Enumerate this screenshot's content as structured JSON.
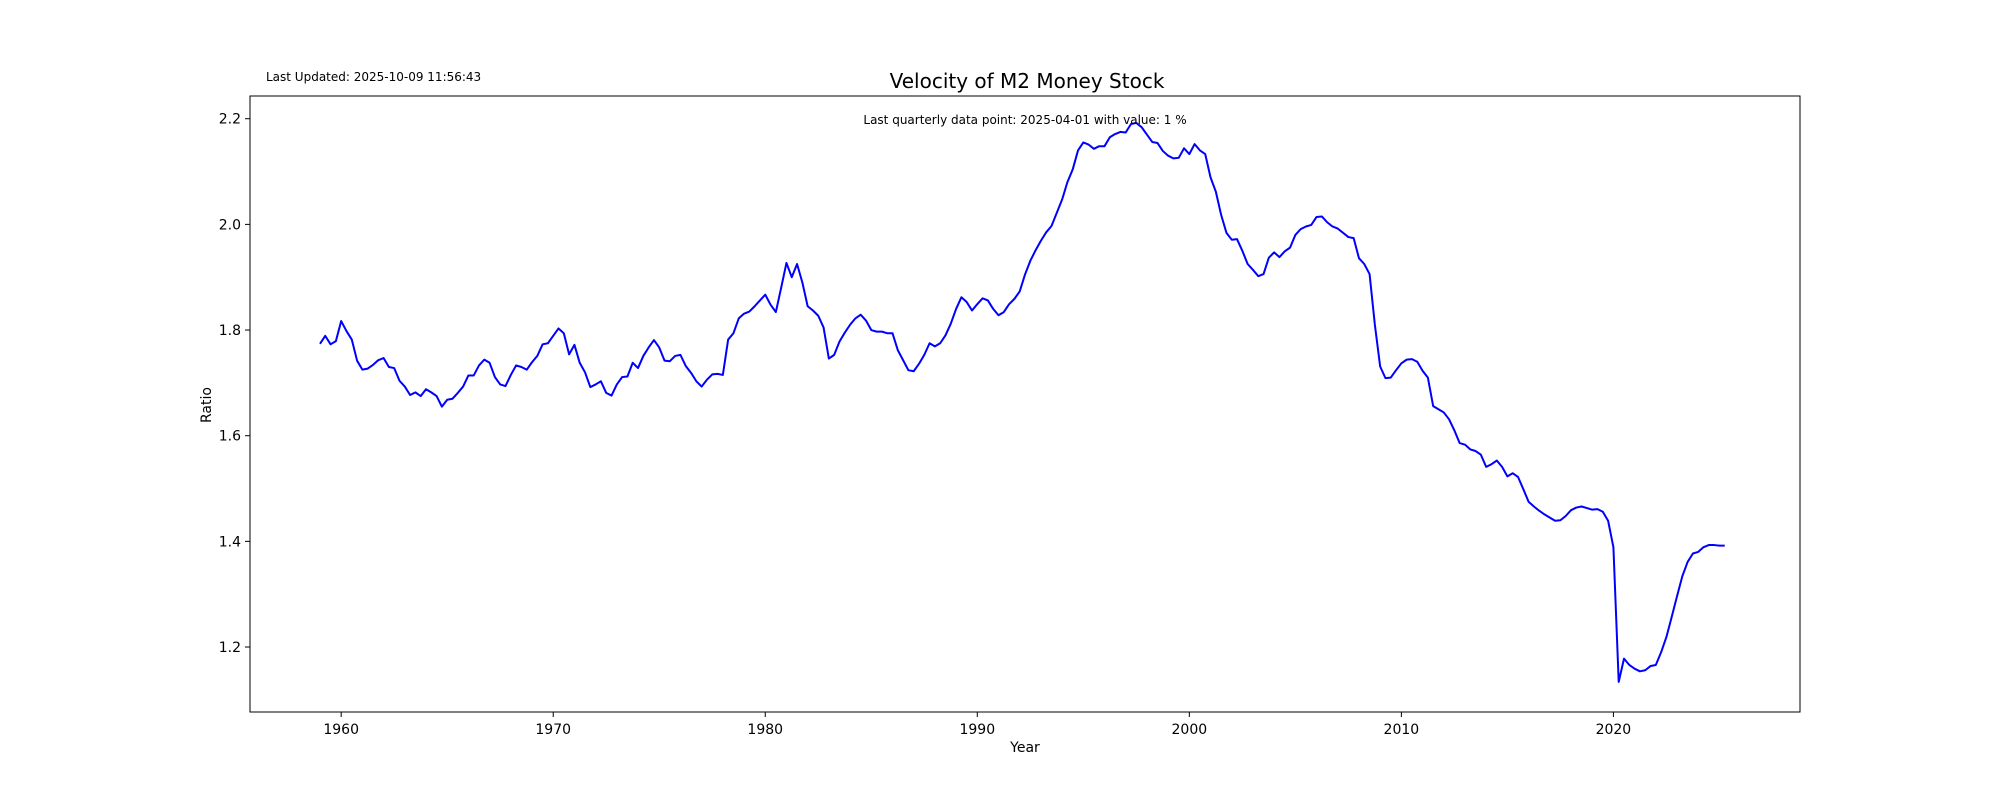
{
  "last_updated": "Last Updated: 2025-10-09 11:56:43",
  "chart_data": {
    "type": "line",
    "title": "Velocity of M2 Money Stock",
    "xlabel": "Year",
    "ylabel": "Ratio",
    "annotation": "Last quarterly data point: 2025-04-01 with value: 1 %",
    "xlim": [
      1955.7,
      2028.8
    ],
    "ylim": [
      1.077,
      2.243
    ],
    "xticks": [
      1960,
      1970,
      1980,
      1990,
      2000,
      2010,
      2020
    ],
    "xtick_labels": [
      "1960",
      "1970",
      "1980",
      "1990",
      "2000",
      "2010",
      "2020"
    ],
    "yticks": [
      1.2,
      1.4,
      1.6,
      1.8,
      2.0,
      2.2
    ],
    "ytick_labels": [
      "1.2",
      "1.4",
      "1.6",
      "1.8",
      "2.0",
      "2.2"
    ],
    "grid": false,
    "line_color": "#0000ff",
    "series": [
      {
        "x": [
          1959.0,
          1959.25,
          1959.5,
          1959.75,
          1960.0,
          1960.25,
          1960.5,
          1960.75,
          1961.0,
          1961.25,
          1961.5,
          1961.75,
          1962.0,
          1962.25,
          1962.5,
          1962.75,
          1963.0,
          1963.25,
          1963.5,
          1963.75,
          1964.0,
          1964.25,
          1964.5,
          1964.75,
          1965.0,
          1965.25,
          1965.5,
          1965.75,
          1966.0,
          1966.25,
          1966.5,
          1966.75,
          1967.0,
          1967.25,
          1967.5,
          1967.75,
          1968.0,
          1968.25,
          1968.5,
          1968.75,
          1969.0,
          1969.25,
          1969.5,
          1969.75,
          1970.0,
          1970.25,
          1970.5,
          1970.75,
          1971.0,
          1971.25,
          1971.5,
          1971.75,
          1972.0,
          1972.25,
          1972.5,
          1972.75,
          1973.0,
          1973.25,
          1973.5,
          1973.75,
          1974.0,
          1974.25,
          1974.5,
          1974.75,
          1975.0,
          1975.25,
          1975.5,
          1975.75,
          1976.0,
          1976.25,
          1976.5,
          1976.75,
          1977.0,
          1977.25,
          1977.5,
          1977.75,
          1978.0,
          1978.25,
          1978.5,
          1978.75,
          1979.0,
          1979.25,
          1979.5,
          1979.75,
          1980.0,
          1980.25,
          1980.5,
          1980.75,
          1981.0,
          1981.25,
          1981.5,
          1981.75,
          1982.0,
          1982.25,
          1982.5,
          1982.75,
          1983.0,
          1983.25,
          1983.5,
          1983.75,
          1984.0,
          1984.25,
          1984.5,
          1984.75,
          1985.0,
          1985.25,
          1985.5,
          1985.75,
          1986.0,
          1986.25,
          1986.5,
          1986.75,
          1987.0,
          1987.25,
          1987.5,
          1987.75,
          1988.0,
          1988.25,
          1988.5,
          1988.75,
          1989.0,
          1989.25,
          1989.5,
          1989.75,
          1990.0,
          1990.25,
          1990.5,
          1990.75,
          1991.0,
          1991.25,
          1991.5,
          1991.75,
          1992.0,
          1992.25,
          1992.5,
          1992.75,
          1993.0,
          1993.25,
          1993.5,
          1993.75,
          1994.0,
          1994.25,
          1994.5,
          1994.75,
          1995.0,
          1995.25,
          1995.5,
          1995.75,
          1996.0,
          1996.25,
          1996.5,
          1996.75,
          1997.0,
          1997.25,
          1997.5,
          1997.75,
          1998.0,
          1998.25,
          1998.5,
          1998.75,
          1999.0,
          1999.25,
          1999.5,
          1999.75,
          2000.0,
          2000.25,
          2000.5,
          2000.75,
          2001.0,
          2001.25,
          2001.5,
          2001.75,
          2002.0,
          2002.25,
          2002.5,
          2002.75,
          2003.0,
          2003.25,
          2003.5,
          2003.75,
          2004.0,
          2004.25,
          2004.5,
          2004.75,
          2005.0,
          2005.25,
          2005.5,
          2005.75,
          2006.0,
          2006.25,
          2006.5,
          2006.75,
          2007.0,
          2007.25,
          2007.5,
          2007.75,
          2008.0,
          2008.25,
          2008.5,
          2008.75,
          2009.0,
          2009.25,
          2009.5,
          2009.75,
          2010.0,
          2010.25,
          2010.5,
          2010.75,
          2011.0,
          2011.25,
          2011.5,
          2011.75,
          2012.0,
          2012.25,
          2012.5,
          2012.75,
          2013.0,
          2013.25,
          2013.5,
          2013.75,
          2014.0,
          2014.25,
          2014.5,
          2014.75,
          2015.0,
          2015.25,
          2015.5,
          2015.75,
          2016.0,
          2016.25,
          2016.5,
          2016.75,
          2017.0,
          2017.25,
          2017.5,
          2017.75,
          2018.0,
          2018.25,
          2018.5,
          2018.75,
          2019.0,
          2019.25,
          2019.5,
          2019.75,
          2020.0,
          2020.25,
          2020.5,
          2020.75,
          2021.0,
          2021.25,
          2021.5,
          2021.75,
          2022.0,
          2022.25,
          2022.5,
          2022.75,
          2023.0,
          2023.25,
          2023.5,
          2023.75,
          2024.0,
          2024.25,
          2024.5,
          2024.75,
          2025.0,
          2025.25
        ],
        "y": [
          1.774,
          1.789,
          1.773,
          1.779,
          1.817,
          1.798,
          1.782,
          1.742,
          1.725,
          1.727,
          1.734,
          1.743,
          1.747,
          1.73,
          1.728,
          1.704,
          1.693,
          1.677,
          1.682,
          1.675,
          1.688,
          1.682,
          1.675,
          1.655,
          1.668,
          1.67,
          1.681,
          1.693,
          1.714,
          1.714,
          1.733,
          1.744,
          1.738,
          1.711,
          1.697,
          1.694,
          1.715,
          1.733,
          1.73,
          1.725,
          1.739,
          1.751,
          1.773,
          1.775,
          1.789,
          1.803,
          1.794,
          1.754,
          1.772,
          1.738,
          1.72,
          1.692,
          1.697,
          1.703,
          1.681,
          1.676,
          1.697,
          1.711,
          1.712,
          1.738,
          1.728,
          1.751,
          1.767,
          1.781,
          1.767,
          1.742,
          1.741,
          1.751,
          1.753,
          1.732,
          1.719,
          1.703,
          1.693,
          1.706,
          1.716,
          1.717,
          1.715,
          1.782,
          1.794,
          1.822,
          1.831,
          1.835,
          1.845,
          1.856,
          1.867,
          1.848,
          1.834,
          1.88,
          1.927,
          1.9,
          1.925,
          1.89,
          1.845,
          1.837,
          1.827,
          1.805,
          1.746,
          1.753,
          1.778,
          1.795,
          1.81,
          1.822,
          1.829,
          1.818,
          1.8,
          1.797,
          1.797,
          1.794,
          1.794,
          1.762,
          1.743,
          1.724,
          1.722,
          1.736,
          1.753,
          1.775,
          1.769,
          1.775,
          1.79,
          1.812,
          1.84,
          1.862,
          1.853,
          1.837,
          1.849,
          1.86,
          1.856,
          1.84,
          1.828,
          1.834,
          1.849,
          1.859,
          1.873,
          1.905,
          1.931,
          1.951,
          1.969,
          1.985,
          1.997,
          2.022,
          2.047,
          2.08,
          2.104,
          2.14,
          2.155,
          2.151,
          2.143,
          2.148,
          2.148,
          2.165,
          2.171,
          2.175,
          2.174,
          2.19,
          2.192,
          2.184,
          2.17,
          2.156,
          2.154,
          2.139,
          2.13,
          2.125,
          2.126,
          2.144,
          2.133,
          2.152,
          2.14,
          2.133,
          2.089,
          2.062,
          2.018,
          1.984,
          1.971,
          1.972,
          1.95,
          1.925,
          1.914,
          1.902,
          1.906,
          1.937,
          1.947,
          1.938,
          1.949,
          1.956,
          1.98,
          1.991,
          1.996,
          1.999,
          2.014,
          2.015,
          2.004,
          1.996,
          1.992,
          1.984,
          1.976,
          1.974,
          1.936,
          1.925,
          1.906,
          1.81,
          1.731,
          1.709,
          1.71,
          1.724,
          1.737,
          1.744,
          1.745,
          1.74,
          1.723,
          1.71,
          1.656,
          1.65,
          1.644,
          1.631,
          1.61,
          1.586,
          1.583,
          1.574,
          1.571,
          1.564,
          1.541,
          1.546,
          1.553,
          1.541,
          1.523,
          1.529,
          1.522,
          1.499,
          1.475,
          1.466,
          1.458,
          1.451,
          1.445,
          1.439,
          1.44,
          1.448,
          1.459,
          1.464,
          1.466,
          1.463,
          1.46,
          1.461,
          1.456,
          1.439,
          1.389,
          1.134,
          1.178,
          1.166,
          1.159,
          1.154,
          1.156,
          1.164,
          1.166,
          1.19,
          1.219,
          1.257,
          1.296,
          1.334,
          1.361,
          1.377,
          1.38,
          1.389,
          1.393,
          1.393,
          1.392,
          1.392
        ]
      }
    ]
  }
}
